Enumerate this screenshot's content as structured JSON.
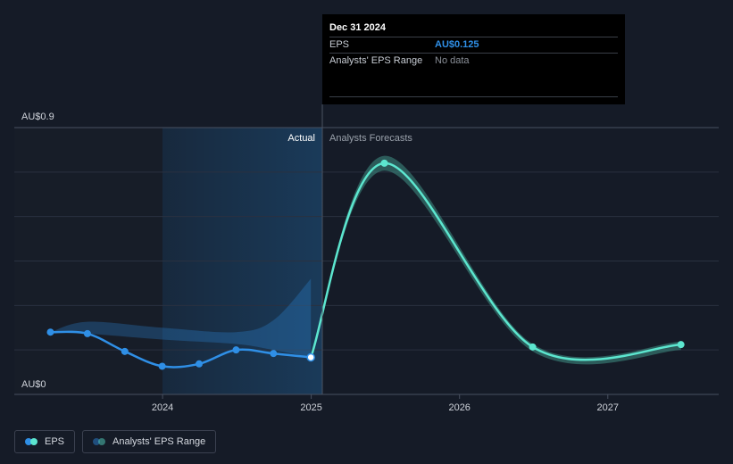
{
  "chart_data": {
    "type": "line",
    "title": "",
    "y_tick_labels": {
      "top": "AU$0.9",
      "bottom": "AU$0"
    },
    "ylim": [
      0,
      0.9
    ],
    "x_tick_labels": [
      "2024",
      "2025",
      "2026",
      "2027"
    ],
    "sections": {
      "actual": "Actual",
      "forecast": "Analysts Forecasts"
    },
    "series": [
      {
        "name": "EPS",
        "color": "#2f8fe6",
        "points": [
          {
            "x": "2023-03-31",
            "y": 0.21
          },
          {
            "x": "2023-06-30",
            "y": 0.205
          },
          {
            "x": "2023-09-30",
            "y": 0.145
          },
          {
            "x": "2023-12-31",
            "y": 0.095
          },
          {
            "x": "2024-03-31",
            "y": 0.103
          },
          {
            "x": "2024-06-30",
            "y": 0.15
          },
          {
            "x": "2024-09-30",
            "y": 0.138
          },
          {
            "x": "2024-12-31",
            "y": 0.125
          }
        ]
      },
      {
        "name": "EPS forecast",
        "color": "#5ce6cf",
        "points": [
          {
            "x": "2024-12-31",
            "y": 0.125
          },
          {
            "x": "2025-06-30",
            "y": 0.78
          },
          {
            "x": "2026-06-30",
            "y": 0.16
          },
          {
            "x": "2027-06-30",
            "y": 0.168
          }
        ]
      }
    ],
    "range": {
      "name": "Analysts' EPS Range",
      "actual_upper": [
        {
          "x": "2023-03-31",
          "y": 0.21
        },
        {
          "x": "2023-06-30",
          "y": 0.245
        },
        {
          "x": "2023-12-31",
          "y": 0.225
        },
        {
          "x": "2024-06-30",
          "y": 0.21
        },
        {
          "x": "2024-09-30",
          "y": 0.25
        },
        {
          "x": "2024-12-31",
          "y": 0.39
        }
      ],
      "actual_lower": [
        {
          "x": "2024-12-31",
          "y": 0.125
        },
        {
          "x": "2024-09-30",
          "y": 0.15
        },
        {
          "x": "2024-06-30",
          "y": 0.17
        },
        {
          "x": "2023-12-31",
          "y": 0.185
        },
        {
          "x": "2023-06-30",
          "y": 0.205
        },
        {
          "x": "2023-03-31",
          "y": 0.21
        }
      ],
      "forecast_upper": [
        {
          "x": "2024-12-31",
          "y": 0.125
        },
        {
          "x": "2025-06-30",
          "y": 0.805
        },
        {
          "x": "2026-06-30",
          "y": 0.17
        },
        {
          "x": "2027-06-30",
          "y": 0.178
        }
      ],
      "forecast_lower": [
        {
          "x": "2027-06-30",
          "y": 0.15
        },
        {
          "x": "2026-06-30",
          "y": 0.145
        },
        {
          "x": "2025-06-30",
          "y": 0.755
        },
        {
          "x": "2024-12-31",
          "y": 0.125
        }
      ]
    },
    "grid": true
  },
  "tooltip": {
    "date": "Dec 31 2024",
    "rows": [
      {
        "label": "EPS",
        "value": "AU$0.125"
      },
      {
        "label": "Analysts' EPS Range",
        "value": "No data"
      }
    ]
  },
  "legend": {
    "items": [
      {
        "label": "EPS",
        "colors": [
          "#2f8fe6",
          "#5ce6cf"
        ]
      },
      {
        "label": "Analysts' EPS Range",
        "colors": [
          "#2f8fe6",
          "#5ce6cf"
        ]
      }
    ]
  }
}
